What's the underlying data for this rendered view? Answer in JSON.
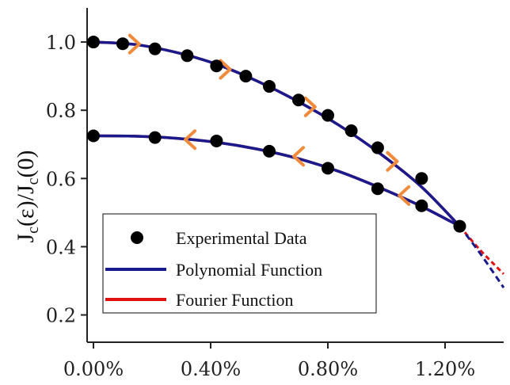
{
  "chart_data": {
    "type": "line",
    "ylabel": "J_c(ε)/J_c(0)",
    "ylabel_parts": {
      "J": "J",
      "c": "c",
      "eps": "(ε)/J",
      "zero": "(0)"
    },
    "xlim": [
      0,
      1.4
    ],
    "ylim": [
      0.12,
      1.1
    ],
    "x_unit": "%",
    "x_ticks": [
      0.0,
      0.4,
      0.8,
      1.2
    ],
    "x_tick_labels": [
      "0.00%",
      "0.40%",
      "0.80%",
      "1.20%"
    ],
    "y_ticks": [
      0.2,
      0.4,
      0.6,
      0.8,
      1.0
    ],
    "y_tick_labels": [
      "0.2",
      "0.4",
      "0.6",
      "0.8",
      "1.0"
    ],
    "legend_position": "bottom-left",
    "colors": {
      "experimental": "#000000",
      "polynomial": "#1a1a8c",
      "fourier": "#e01010",
      "arrows": "#f08a3c"
    },
    "series": [
      {
        "name": "Experimental Data",
        "style": "markers",
        "x": [
          0.0,
          0.1,
          0.21,
          0.32,
          0.42,
          0.52,
          0.6,
          0.7,
          0.8,
          0.88,
          0.97,
          1.12,
          1.25,
          1.12,
          0.97,
          0.8,
          0.6,
          0.42,
          0.21,
          0.0
        ],
        "y": [
          1.0,
          0.995,
          0.98,
          0.96,
          0.93,
          0.9,
          0.87,
          0.83,
          0.785,
          0.74,
          0.69,
          0.6,
          0.46,
          0.52,
          0.57,
          0.63,
          0.68,
          0.71,
          0.72,
          0.725
        ]
      },
      {
        "name": "Polynomial Function",
        "style": "line",
        "loading": {
          "x": [
            0.0,
            0.14,
            0.28,
            0.42,
            0.56,
            0.7,
            0.84,
            0.98,
            1.12,
            1.25
          ],
          "y": [
            1.0,
            0.993,
            0.97,
            0.935,
            0.885,
            0.825,
            0.755,
            0.672,
            0.575,
            0.46
          ]
        },
        "unloading": {
          "x": [
            0.0,
            0.14,
            0.28,
            0.42,
            0.56,
            0.7,
            0.84,
            0.98,
            1.12,
            1.25
          ],
          "y": [
            0.725,
            0.724,
            0.718,
            0.706,
            0.686,
            0.658,
            0.62,
            0.572,
            0.518,
            0.46
          ]
        },
        "extrapolation": {
          "x": [
            1.25,
            1.32,
            1.4
          ],
          "y": [
            0.46,
            0.38,
            0.28
          ]
        }
      },
      {
        "name": "Fourier Function",
        "style": "line",
        "loading": {
          "x": [
            0.0,
            0.14,
            0.28,
            0.42,
            0.56,
            0.7,
            0.84,
            0.98,
            1.12,
            1.25
          ],
          "y": [
            1.0,
            0.993,
            0.97,
            0.935,
            0.885,
            0.825,
            0.755,
            0.672,
            0.575,
            0.46
          ]
        },
        "unloading": {
          "x": [
            0.0,
            0.14,
            0.28,
            0.42,
            0.56,
            0.7,
            0.84,
            0.98,
            1.12,
            1.25
          ],
          "y": [
            0.725,
            0.724,
            0.718,
            0.706,
            0.686,
            0.658,
            0.62,
            0.572,
            0.518,
            0.46
          ]
        },
        "extrapolation": {
          "x": [
            1.25,
            1.32,
            1.4
          ],
          "y": [
            0.46,
            0.39,
            0.32
          ]
        }
      }
    ],
    "direction_arrows": [
      {
        "x": 0.14,
        "y": 0.994,
        "dir": "right"
      },
      {
        "x": 0.45,
        "y": 0.92,
        "dir": "right"
      },
      {
        "x": 0.74,
        "y": 0.81,
        "dir": "right"
      },
      {
        "x": 1.02,
        "y": 0.65,
        "dir": "right"
      },
      {
        "x": 1.06,
        "y": 0.55,
        "dir": "left"
      },
      {
        "x": 0.7,
        "y": 0.665,
        "dir": "left"
      },
      {
        "x": 0.33,
        "y": 0.714,
        "dir": "left"
      }
    ]
  }
}
